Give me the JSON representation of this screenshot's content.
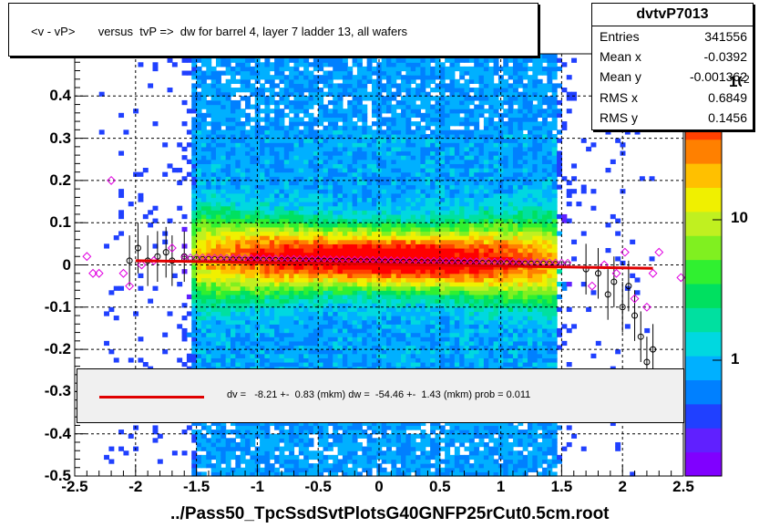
{
  "title": "<v - vP>       versus  tvP =>  dw for barrel 4, layer 7 ladder 13, all wafers",
  "stats": {
    "name": "dvtvP7013",
    "rows": [
      {
        "key": "Entries",
        "value": "341556"
      },
      {
        "key": "Mean x",
        "value": "-0.0392"
      },
      {
        "key": "Mean y",
        "value": "-0.001362"
      },
      {
        "key": "RMS x",
        "value": "0.6849"
      },
      {
        "key": "RMS y",
        "value": "0.1456"
      }
    ]
  },
  "fit_text": "dv =   -8.21 +-  0.83 (mkm) dw =  -54.46 +-  1.43 (mkm) prob = 0.011",
  "xlabel": "../Pass50_TpcSsdSvtPlotsG40GNFP25rCut0.5cm.root",
  "palette": {
    "labels": [
      "1",
      "10",
      "10"
    ],
    "exponent": "2",
    "colors": [
      "#8000ff",
      "#6020ff",
      "#2040ff",
      "#0080ff",
      "#00b0ff",
      "#00d8e0",
      "#00e0a0",
      "#00e060",
      "#30f030",
      "#80f020",
      "#c0f020",
      "#f0f000",
      "#ffc000",
      "#ff8000",
      "#ff4000",
      "#ff0000"
    ]
  },
  "chart_data": {
    "type": "heatmap",
    "title": "<v - vP>       versus  tvP =>  dw for barrel 4, layer 7 ladder 13, all wafers",
    "xlabel": "../Pass50_TpcSsdSvtPlotsG40GNFP25rCut0.5cm.root",
    "ylabel": "",
    "xlim": [
      -2.5,
      2.5
    ],
    "ylim": [
      -0.5,
      0.5
    ],
    "x_ticks": [
      "-2.5",
      "-2",
      "-1.5",
      "-1",
      "-0.5",
      "0",
      "0.5",
      "1",
      "1.5",
      "2",
      "2.5"
    ],
    "y_ticks": [
      "-0.5",
      "-0.4",
      "-0.3",
      "-0.2",
      "-0.1",
      "0",
      "0.1",
      "0.2",
      "0.3",
      "0.4"
    ],
    "z_scale": "log",
    "grid": true,
    "fit_line": {
      "x": [
        -2.0,
        2.25
      ],
      "y": [
        0.01,
        -0.008
      ]
    },
    "black_profile": [
      {
        "x": -2.05,
        "y": 0.01
      },
      {
        "x": -1.98,
        "y": 0.04
      },
      {
        "x": -1.9,
        "y": 0.01
      },
      {
        "x": -1.82,
        "y": 0.02
      },
      {
        "x": -1.75,
        "y": 0.03
      },
      {
        "x": -1.7,
        "y": 0.01
      },
      {
        "x": -1.6,
        "y": 0.02
      },
      {
        "x": 1.7,
        "y": -0.01
      },
      {
        "x": 1.8,
        "y": -0.02
      },
      {
        "x": 1.88,
        "y": -0.07
      },
      {
        "x": 1.93,
        "y": -0.04
      },
      {
        "x": 2.0,
        "y": -0.1
      },
      {
        "x": 2.05,
        "y": -0.05
      },
      {
        "x": 2.1,
        "y": -0.12
      },
      {
        "x": 2.15,
        "y": -0.17
      },
      {
        "x": 2.2,
        "y": -0.23
      },
      {
        "x": 2.25,
        "y": -0.2
      }
    ],
    "magenta_profile": [
      {
        "x": -2.4,
        "y": 0.02
      },
      {
        "x": -2.35,
        "y": -0.02
      },
      {
        "x": -2.3,
        "y": -0.02
      },
      {
        "x": -2.2,
        "y": 0.2
      },
      {
        "x": -2.1,
        "y": -0.02
      },
      {
        "x": -2.05,
        "y": -0.05
      },
      {
        "x": -1.95,
        "y": 0.0
      },
      {
        "x": -1.85,
        "y": 0.01
      },
      {
        "x": -1.7,
        "y": 0.04
      },
      {
        "x": 1.75,
        "y": -0.05
      },
      {
        "x": 1.85,
        "y": 0.0
      },
      {
        "x": 1.95,
        "y": -0.02
      },
      {
        "x": 2.02,
        "y": 0.03
      },
      {
        "x": 2.1,
        "y": -0.08
      },
      {
        "x": 2.2,
        "y": -0.1
      },
      {
        "x": 2.25,
        "y": -0.02
      },
      {
        "x": 2.3,
        "y": 0.03
      },
      {
        "x": 2.48,
        "y": -0.03
      }
    ]
  }
}
